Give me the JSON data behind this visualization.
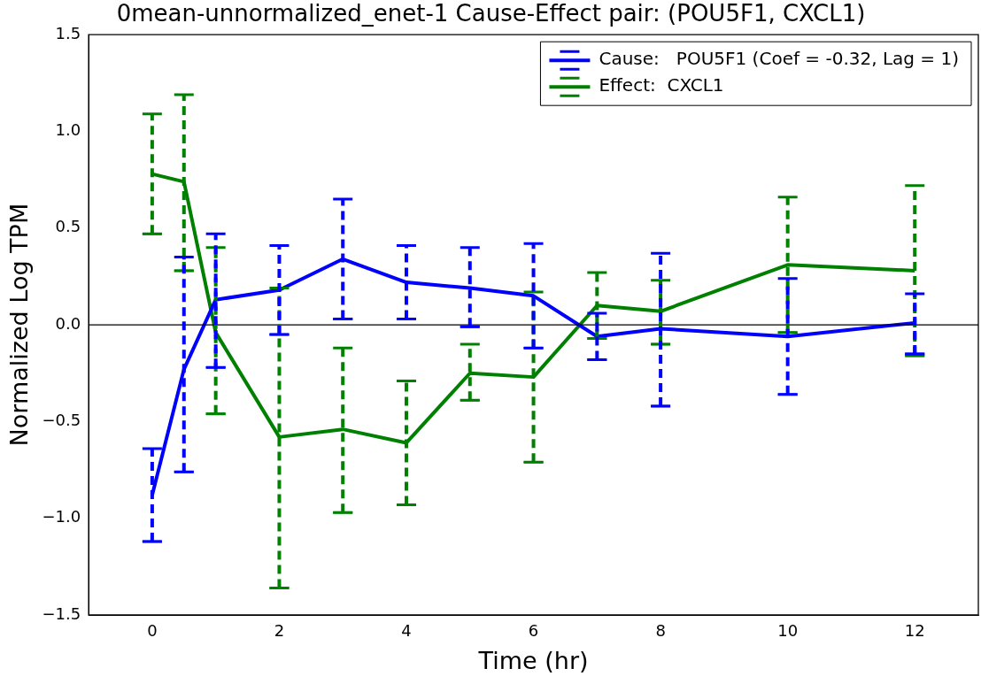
{
  "chart_data": {
    "type": "line",
    "title": "0mean-unnormalized_enet-1 Cause-Effect pair: (POU5F1, CXCL1)",
    "xlabel": "Time (hr)",
    "ylabel": "Normalized Log TPM",
    "x": [
      0,
      0.5,
      1,
      2,
      3,
      4,
      5,
      6,
      7,
      8,
      10,
      12
    ],
    "series": [
      {
        "name": "Cause:   POU5F1 (Coef = -0.32, Lag = 1)",
        "color": "#0000ff",
        "values": [
          -0.88,
          -0.23,
          0.13,
          0.18,
          0.34,
          0.22,
          0.19,
          0.15,
          -0.06,
          -0.02,
          -0.06,
          0.01
        ],
        "errors": [
          [
            -1.12,
            -0.64
          ],
          [
            -0.76,
            0.35
          ],
          [
            -0.22,
            0.47
          ],
          [
            -0.05,
            0.41
          ],
          [
            0.03,
            0.65
          ],
          [
            0.03,
            0.41
          ],
          [
            -0.01,
            0.4
          ],
          [
            -0.12,
            0.42
          ],
          [
            -0.18,
            0.06
          ],
          [
            -0.42,
            0.37
          ],
          [
            -0.36,
            0.24
          ],
          [
            -0.15,
            0.16
          ]
        ]
      },
      {
        "name": "Effect:  CXCL1",
        "color": "#008000",
        "values": [
          0.78,
          0.74,
          -0.04,
          -0.58,
          -0.54,
          -0.61,
          -0.25,
          -0.27,
          0.1,
          0.07,
          0.31,
          0.28
        ],
        "errors": [
          [
            0.47,
            1.09
          ],
          [
            0.28,
            1.19
          ],
          [
            -0.46,
            0.4
          ],
          [
            -1.36,
            0.19
          ],
          [
            -0.97,
            -0.12
          ],
          [
            -0.93,
            -0.29
          ],
          [
            -0.39,
            -0.1
          ],
          [
            -0.71,
            0.17
          ],
          [
            -0.07,
            0.27
          ],
          [
            -0.1,
            0.23
          ],
          [
            -0.04,
            0.66
          ],
          [
            -0.16,
            0.72
          ]
        ]
      }
    ],
    "xlim": [
      -1,
      13
    ],
    "xticks": [
      0,
      2,
      4,
      6,
      8,
      10,
      12
    ],
    "ylim": [
      -1.5,
      1.5
    ],
    "yticks": [
      {
        "value": -1.5,
        "label": "−1.5"
      },
      {
        "value": -1,
        "label": "−1.0"
      },
      {
        "value": -0.5,
        "label": "−0.5"
      },
      {
        "value": 0,
        "label": "0.0"
      },
      {
        "value": 0.5,
        "label": "0.5"
      },
      {
        "value": 1,
        "label": "1.0"
      },
      {
        "value": 1.5,
        "label": "1.5"
      }
    ],
    "ref_lines": [
      {
        "axis": "y",
        "value": 0,
        "color": "#000000"
      }
    ],
    "grid": false,
    "legend": "top right",
    "marker": "none"
  }
}
